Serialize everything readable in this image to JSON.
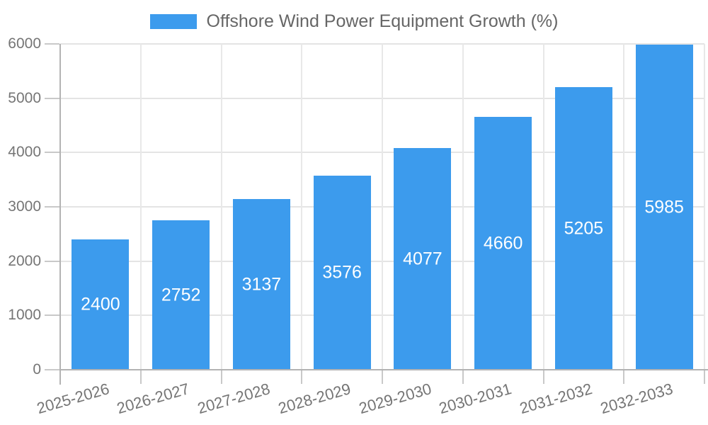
{
  "chart_data": {
    "type": "bar",
    "title": "Offshore Wind Power Equipment Growth (%)",
    "categories": [
      "2025-2026",
      "2026-2027",
      "2027-2028",
      "2028-2029",
      "2029-2030",
      "2030-2031",
      "2031-2032",
      "2032-2033"
    ],
    "values": [
      2400,
      2752,
      3137,
      3576,
      4077,
      4660,
      5205,
      5985
    ],
    "xlabel": "",
    "ylabel": "",
    "ylim": [
      0,
      6000
    ],
    "yticks": [
      0,
      1000,
      2000,
      3000,
      4000,
      5000,
      6000
    ],
    "grid": true,
    "legend_position": "top-center",
    "value_labels": "inside-center",
    "x_label_rotation_deg": -16,
    "colors": {
      "bar": "#3C9BED",
      "value_label": "#FFFFFF",
      "tick_label": "#757575",
      "legend_text": "#666666",
      "grid_line_h": "#E4E4E4",
      "grid_line_v": "#E8E8E8",
      "axis_line": "#B3B3B3",
      "tick_mark": "#C9C9C9"
    }
  }
}
